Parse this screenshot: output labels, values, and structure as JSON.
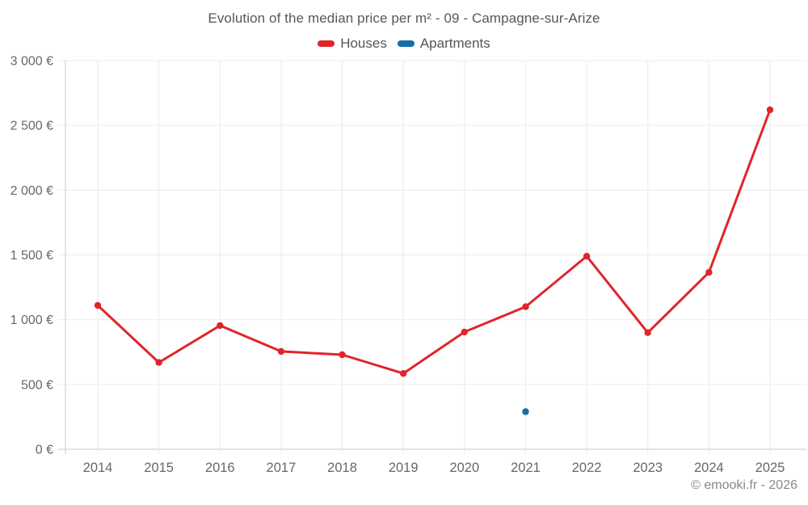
{
  "title": "Evolution of the median price per m² - 09 - Campagne-sur-Arize",
  "watermark": "© emooki.fr - 2026",
  "colors": {
    "houses": "#e0252b",
    "apartments": "#176ca6",
    "grid": "#ebebec",
    "axis": "#c7c9cc",
    "tick_text": "#64686c",
    "title_text": "#54585d",
    "watermark_text": "#86888b"
  },
  "chart_data": {
    "type": "line",
    "title": "Evolution of the median price per m² - 09 - Campagne-sur-Arize",
    "x": [
      2014,
      2015,
      2016,
      2017,
      2018,
      2019,
      2020,
      2021,
      2022,
      2023,
      2024,
      2025
    ],
    "series": [
      {
        "name": "Houses",
        "color": "#e0252b",
        "unit": "€/m²",
        "values": [
          1110,
          670,
          955,
          755,
          730,
          585,
          905,
          1100,
          1490,
          900,
          1365,
          2620
        ]
      },
      {
        "name": "Apartments",
        "color": "#176ca6",
        "unit": "€/m²",
        "values": [
          null,
          null,
          null,
          null,
          null,
          null,
          null,
          290,
          null,
          null,
          null,
          null
        ]
      }
    ],
    "ylim": [
      0,
      3000
    ],
    "ytick_step": 500,
    "ytick_labels": [
      "0 €",
      "500 €",
      "1 000 €",
      "1 500 €",
      "2 000 €",
      "2 500 €",
      "3 000 €"
    ],
    "xlabel": "",
    "ylabel": "",
    "grid": true,
    "legend_position": "top",
    "marker": "circle",
    "line_style": "straight"
  }
}
